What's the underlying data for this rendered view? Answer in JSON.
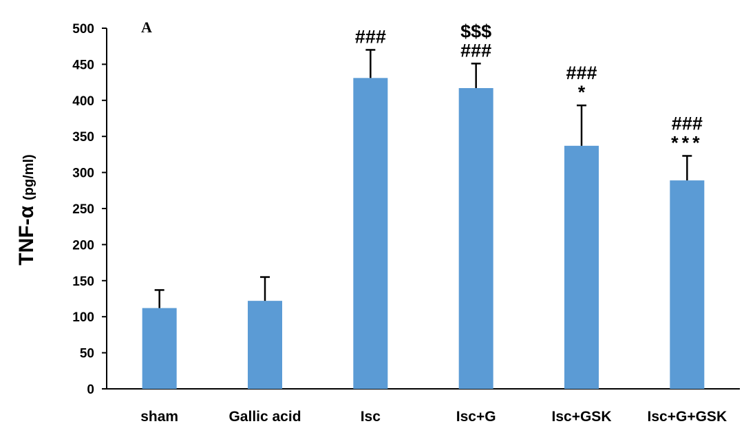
{
  "chart_data": {
    "type": "bar",
    "panel_label": "A",
    "title": "",
    "ylabel": "TNF-α",
    "ylabel_unit": "(pg/ml)",
    "xlabel": "",
    "ylim": [
      0,
      500
    ],
    "yticks": [
      0,
      50,
      100,
      150,
      200,
      250,
      300,
      350,
      400,
      450,
      500
    ],
    "grid": false,
    "bar_color": "#5B9BD5",
    "categories": [
      "sham",
      "Gallic acid",
      "Isc",
      "Isc+G",
      "Isc+GSK",
      "Isc+G+GSK"
    ],
    "values": [
      112,
      122,
      431,
      417,
      337,
      289
    ],
    "error_upper": [
      25,
      33,
      39,
      34,
      56,
      34
    ],
    "annotations": [
      [],
      [],
      [
        "###"
      ],
      [
        "$$$",
        "###"
      ],
      [
        "###",
        "*"
      ],
      [
        "###",
        "***"
      ]
    ]
  }
}
